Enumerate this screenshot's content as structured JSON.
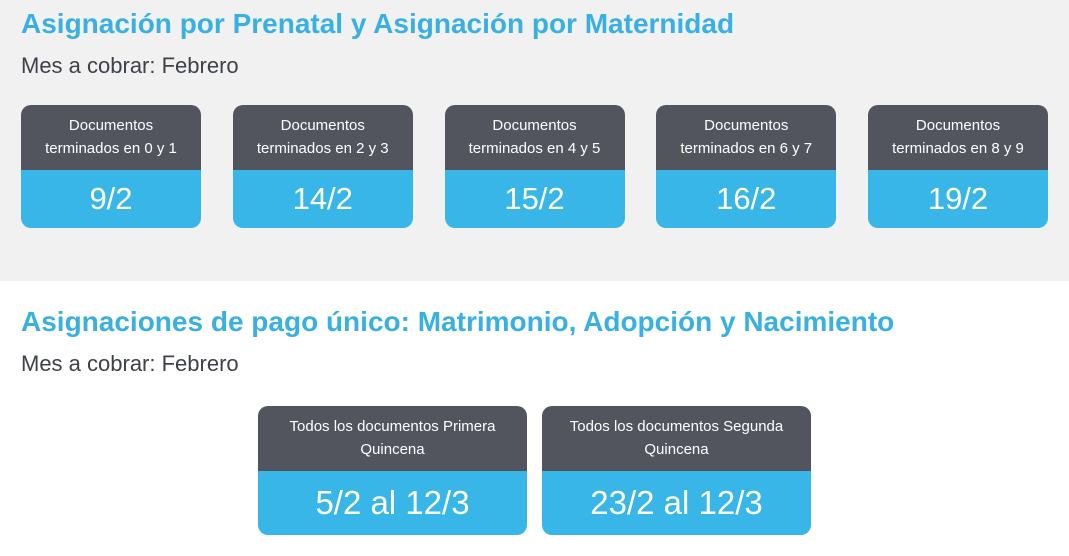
{
  "colors": {
    "title_blue": "#38b0e3",
    "card_blue": "#38b6e8",
    "card_header_dark": "#52555d",
    "section_background": "#f1f1f1",
    "subtitle_text": "#3e4147"
  },
  "prenatal_section": {
    "title": "Asignación por Prenatal y Asignación por Maternidad",
    "subtitle": "Mes a cobrar: Febrero",
    "cards": [
      {
        "label": "Documentos terminados en 0 y 1",
        "value": "9/2"
      },
      {
        "label": "Documentos terminados en 2 y 3",
        "value": "14/2"
      },
      {
        "label": "Documentos terminados en 4 y 5",
        "value": "15/2"
      },
      {
        "label": "Documentos terminados en 6 y 7",
        "value": "16/2"
      },
      {
        "label": "Documentos terminados en 8 y 9",
        "value": "19/2"
      }
    ]
  },
  "pago_unico_section": {
    "title": "Asignaciones de pago único: Matrimonio, Adopción y Nacimiento",
    "subtitle": "Mes a cobrar: Febrero",
    "cards": [
      {
        "label": "Todos los documentos Primera Quincena",
        "value": "5/2 al 12/3"
      },
      {
        "label": "Todos los documentos Segunda Quincena",
        "value": "23/2 al 12/3"
      }
    ]
  }
}
